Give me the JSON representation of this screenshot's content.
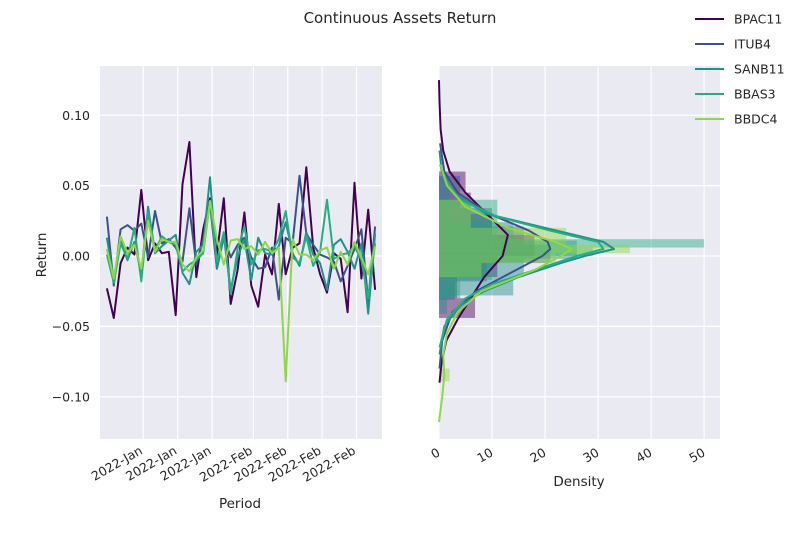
{
  "title": "Continuous Assets Return",
  "colors": {
    "BPAC11": "#440154",
    "ITUB4": "#3b528b",
    "SANB11": "#21918c",
    "BBAS3": "#27ad81",
    "BBDC4": "#8fd744",
    "panel_bg": "#eaeaf2",
    "grid": "#ffffff"
  },
  "chart_data": [
    {
      "type": "line",
      "xlabel": "Period",
      "ylabel": "Return",
      "ylim": [
        -0.13,
        0.135
      ],
      "yticks": [
        0.1,
        0.05,
        0.0,
        -0.05,
        -0.1
      ],
      "ytick_labels": [
        "0.10",
        "0.05",
        "0.00",
        "−0.05",
        "−0.10"
      ],
      "xticks": [
        6.3,
        11.3,
        16.3,
        22.3,
        27.3,
        32.3,
        37.3
      ],
      "xtick_labels": [
        "2022-Jan",
        "2022-Jan",
        "2022-Jan",
        "2022-Feb",
        "2022-Feb",
        "2022-Feb",
        "2022-Feb"
      ],
      "xlim": [
        0,
        41
      ],
      "grid": true,
      "series": [
        {
          "name": "BPAC11",
          "values": [
            -0.023,
            -0.044,
            -0.005,
            0.006,
            0.001,
            0.047,
            -0.003,
            0.009,
            0.002,
            0.003,
            -0.042,
            0.051,
            0.081,
            -0.015,
            0.019,
            0.041,
            0.001,
            0.041,
            -0.034,
            -0.01,
            0.031,
            -0.021,
            -0.036,
            0.001,
            -0.013,
            0.037,
            -0.013,
            0.006,
            0.009,
            0.063,
            0.006,
            -0.013,
            -0.026,
            0.002,
            -0.002,
            -0.04,
            0.052,
            -0.016,
            0.033,
            -0.024
          ]
        },
        {
          "name": "ITUB4",
          "values": [
            0.028,
            -0.021,
            0.019,
            0.022,
            0.018,
            0.023,
            -0.001,
            0.032,
            0.009,
            0.012,
            0.006,
            -0.004,
            0.034,
            -0.006,
            0.012,
            0.037,
            -0.009,
            0.014,
            -0.001,
            0.008,
            0.013,
            -0.001,
            -0.009,
            -0.008,
            0.006,
            -0.031,
            0.013,
            0.009,
            0.057,
            0.016,
            0.008,
            0.001,
            -0.001,
            -0.004,
            -0.018,
            -0.007,
            0.005,
            0.019,
            -0.032,
            0.021
          ]
        },
        {
          "name": "SANB11",
          "values": [
            0.013,
            -0.017,
            0.011,
            -0.003,
            0.01,
            -0.013,
            0.035,
            0.002,
            0.007,
            0.011,
            0.015,
            -0.012,
            -0.02,
            0.003,
            0.008,
            0.056,
            -0.009,
            0.014,
            -0.024,
            -0.001,
            0.012,
            -0.017,
            0.013,
            0.002,
            0.001,
            0.007,
            0.024,
            0.002,
            -0.007,
            0.017,
            0.001,
            -0.005,
            -0.024,
            0.008,
            0.012,
            0.003,
            -0.009,
            0.009,
            -0.041,
            0.016
          ]
        },
        {
          "name": "BBAS3",
          "values": [
            0.001,
            -0.019,
            0.009,
            -0.002,
            0.02,
            -0.018,
            0.031,
            0.004,
            0.014,
            0.01,
            0.008,
            -0.011,
            -0.006,
            -0.003,
            0.002,
            0.039,
            -0.004,
            0.017,
            -0.027,
            0.005,
            0.021,
            -0.006,
            0.004,
            0.005,
            0.003,
            0.012,
            0.032,
            -0.001,
            -0.005,
            0.014,
            -0.007,
            0.003,
            0.04,
            -0.002,
            0.001,
            0.002,
            0.007,
            -0.003,
            -0.03,
            0.009
          ]
        },
        {
          "name": "BBDC4",
          "values": [
            0.005,
            -0.016,
            0.014,
            0.002,
            0.008,
            -0.009,
            0.025,
            0.003,
            0.012,
            0.01,
            0.01,
            -0.006,
            -0.011,
            -0.001,
            0.004,
            0.039,
            0.012,
            -0.006,
            0.011,
            0.012,
            0.005,
            0.007,
            0.001,
            0.01,
            0.002,
            0.006,
            -0.089,
            0.012,
            0.001,
            0.001,
            -0.003,
            0.004,
            0.006,
            -0.009,
            0.003,
            -0.006,
            0.01,
            -0.001,
            -0.013,
            0.007
          ]
        }
      ]
    },
    {
      "type": "histogram+kde",
      "xlabel": "Density",
      "ylabel": "",
      "xlim": [
        0,
        53
      ],
      "xticks": [
        0,
        10,
        20,
        30,
        40,
        50
      ],
      "xtick_labels": [
        "0",
        "10",
        "20",
        "30",
        "40",
        "50"
      ],
      "ylim": [
        -0.13,
        0.135
      ],
      "grid": true,
      "series": [
        {
          "name": "BPAC11",
          "bins": [
            [
              -0.044,
              -0.03,
              6.8
            ],
            [
              -0.03,
              -0.015,
              3.4
            ],
            [
              -0.015,
              0.0,
              11.0
            ],
            [
              0.0,
              0.015,
              18.0
            ],
            [
              0.015,
              0.03,
              10.0
            ],
            [
              0.03,
              0.045,
              6.0
            ],
            [
              0.045,
              0.06,
              5.0
            ]
          ],
          "kde": [
            [
              -0.09,
              0.1
            ],
            [
              -0.075,
              0.5
            ],
            [
              -0.06,
              1.4
            ],
            [
              -0.045,
              3.5
            ],
            [
              -0.03,
              6.0
            ],
            [
              -0.015,
              8.5
            ],
            [
              0.0,
              12.0
            ],
            [
              0.015,
              13.0
            ],
            [
              0.03,
              9.0
            ],
            [
              0.045,
              5.0
            ],
            [
              0.06,
              2.0
            ],
            [
              0.075,
              0.8
            ],
            [
              0.09,
              0.3
            ],
            [
              0.11,
              0.1
            ],
            [
              0.125,
              0.0
            ]
          ]
        },
        {
          "name": "ITUB4",
          "bins": [
            [
              -0.031,
              -0.018,
              3.0
            ],
            [
              -0.018,
              -0.005,
              9.0
            ],
            [
              -0.005,
              0.008,
              21.0
            ],
            [
              0.008,
              0.021,
              16.0
            ],
            [
              0.021,
              0.034,
              10.0
            ],
            [
              0.034,
              0.057,
              4.0
            ]
          ],
          "kde": [
            [
              -0.08,
              0.1
            ],
            [
              -0.06,
              0.6
            ],
            [
              -0.04,
              2.5
            ],
            [
              -0.025,
              7.0
            ],
            [
              -0.015,
              12.0
            ],
            [
              -0.005,
              17.0
            ],
            [
              0.0,
              19.5
            ],
            [
              0.005,
              21.0
            ],
            [
              0.01,
              20.5
            ],
            [
              0.018,
              17.0
            ],
            [
              0.03,
              9.5
            ],
            [
              0.045,
              3.5
            ],
            [
              0.06,
              1.0
            ],
            [
              0.08,
              0.2
            ]
          ]
        },
        {
          "name": "SANB11",
          "bins": [
            [
              -0.041,
              -0.028,
              1.5
            ],
            [
              -0.028,
              -0.015,
              14.0
            ],
            [
              -0.015,
              -0.002,
              16.0
            ],
            [
              -0.002,
              0.011,
              26.0
            ],
            [
              0.011,
              0.024,
              14.0
            ],
            [
              0.024,
              0.056,
              2.0
            ]
          ],
          "kde": [
            [
              -0.07,
              0.1
            ],
            [
              -0.05,
              1.0
            ],
            [
              -0.035,
              4.0
            ],
            [
              -0.025,
              8.5
            ],
            [
              -0.015,
              15.0
            ],
            [
              -0.005,
              23.0
            ],
            [
              0.0,
              27.5
            ],
            [
              0.005,
              33.0
            ],
            [
              0.01,
              31.0
            ],
            [
              0.02,
              20.0
            ],
            [
              0.03,
              9.0
            ],
            [
              0.045,
              2.5
            ],
            [
              0.06,
              0.5
            ],
            [
              0.075,
              0.1
            ]
          ]
        },
        {
          "name": "BBAS3",
          "bins": [
            [
              -0.03,
              -0.017,
              4.0
            ],
            [
              -0.017,
              -0.004,
              10.0
            ],
            [
              -0.004,
              0.0,
              18.0
            ],
            [
              0.0,
              0.006,
              29.0
            ],
            [
              0.006,
              0.012,
              50.0
            ],
            [
              0.012,
              0.04,
              11.0
            ]
          ],
          "kde": [
            [
              -0.065,
              0.1
            ],
            [
              -0.045,
              1.5
            ],
            [
              -0.03,
              5.0
            ],
            [
              -0.02,
              10.0
            ],
            [
              -0.01,
              18.0
            ],
            [
              0.0,
              26.0
            ],
            [
              0.005,
              31.0
            ],
            [
              0.01,
              30.0
            ],
            [
              0.018,
              21.0
            ],
            [
              0.028,
              11.0
            ],
            [
              0.04,
              4.0
            ],
            [
              0.055,
              1.0
            ],
            [
              0.065,
              0.2
            ]
          ]
        },
        {
          "name": "BBDC4",
          "bins": [
            [
              -0.089,
              -0.08,
              2.0
            ],
            [
              -0.015,
              -0.005,
              8.0
            ],
            [
              -0.005,
              0.002,
              22.0
            ],
            [
              0.002,
              0.008,
              36.0
            ],
            [
              0.008,
              0.02,
              24.0
            ],
            [
              0.02,
              0.04,
              6.0
            ]
          ],
          "kde": [
            [
              -0.118,
              0.0
            ],
            [
              -0.1,
              0.6
            ],
            [
              -0.085,
              1.0
            ],
            [
              -0.07,
              0.8
            ],
            [
              -0.055,
              1.5
            ],
            [
              -0.04,
              3.5
            ],
            [
              -0.025,
              8.0
            ],
            [
              -0.01,
              18.0
            ],
            [
              0.0,
              23.0
            ],
            [
              0.005,
              25.0
            ],
            [
              0.01,
              22.0
            ],
            [
              0.02,
              13.0
            ],
            [
              0.035,
              5.0
            ],
            [
              0.05,
              1.5
            ],
            [
              0.065,
              0.3
            ]
          ]
        }
      ]
    }
  ],
  "legend": {
    "placement": "top-right",
    "entries": [
      "BPAC11",
      "ITUB4",
      "SANB11",
      "BBAS3",
      "BBDC4"
    ]
  }
}
